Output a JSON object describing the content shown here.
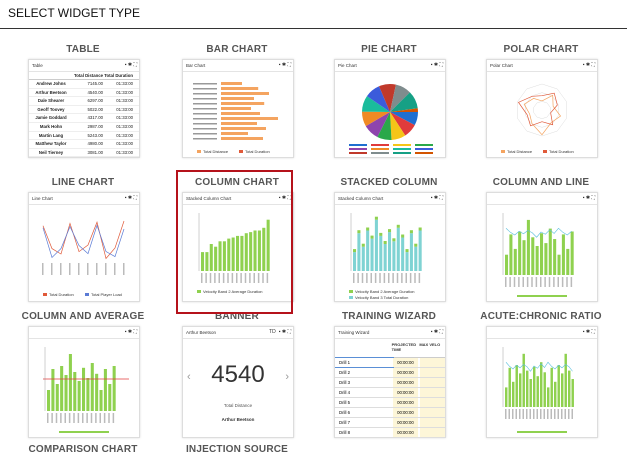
{
  "header": {
    "title": "SELECT WIDGET TYPE"
  },
  "widgets": [
    {
      "label": "TABLE",
      "thumbnail": {
        "title": "Table",
        "columns": [
          "Total Distance",
          "Total Duration"
        ],
        "rows": [
          [
            "Andrew Johns",
            "7145.00",
            "01:33:00"
          ],
          [
            "Arthur Beetson",
            "4540.00",
            "01:33:00"
          ],
          [
            "Dale Shearer",
            "6297.00",
            "01:33:00"
          ],
          [
            "Geoff Toovey",
            "5022.00",
            "01:33:00"
          ],
          [
            "Jamie Goddard",
            "4317.00",
            "01:33:00"
          ],
          [
            "Mark Hohn",
            "2987.00",
            "01:33:00"
          ],
          [
            "Martin Lang",
            "5243.00",
            "01:33:00"
          ],
          [
            "Matthew Taylor",
            "4980.00",
            "01:33:00"
          ],
          [
            "Neil Tierney",
            "3081.00",
            "01:33:00"
          ],
          [
            "Steve Renouf",
            "6249.00",
            "01:33:00"
          ]
        ]
      }
    },
    {
      "label": "BAR CHART",
      "thumbnail": {
        "title": "Bar Chart",
        "legend": [
          "Total Distance",
          "Total Duration"
        ]
      }
    },
    {
      "label": "PIE CHART",
      "thumbnail": {
        "title": "Pie Chart"
      }
    },
    {
      "label": "POLAR CHART",
      "thumbnail": {
        "title": "Polar Chart",
        "legend": [
          "Total Distance",
          "Total Duration"
        ]
      }
    },
    {
      "label": "LINE CHART",
      "thumbnail": {
        "title": "Line Chart",
        "legend": [
          "Total Duration",
          "Total Player Load"
        ]
      }
    },
    {
      "label": "COLUMN CHART",
      "thumbnail": {
        "title": "Stacked Column Chart",
        "legend": [
          "Velocity Band 2 Average Duration"
        ]
      }
    },
    {
      "label": "STACKED COLUMN",
      "thumbnail": {
        "title": "Stacked Column Chart",
        "legend": [
          "Velocity Band 2 Average Duration",
          "Velocity Band 3 Total Duration"
        ]
      }
    },
    {
      "label": "COLUMN AND LINE"
    },
    {
      "label": "COLUMN AND AVERAGE"
    },
    {
      "label": "BANNER",
      "thumbnail": {
        "title": "Arthur Beetson",
        "badge": "TD",
        "value": "4540",
        "caption": "Total Distance",
        "name": "Arthur Beetson"
      }
    },
    {
      "label": "TRAINING WIZARD",
      "thumbnail": {
        "title": "Training Wizard",
        "columns": [
          "PROJECTED TIME",
          "MAX VELO"
        ],
        "rows": [
          "Drill 1",
          "Drill 2",
          "Drill 3",
          "Drill 4",
          "Drill 5",
          "Drill 6",
          "Drill 7",
          "Drill 8"
        ],
        "time": "00:00:00"
      }
    },
    {
      "label": "ACUTE:CHRONIC RATIO"
    },
    {
      "label": "COMPARISON CHART"
    },
    {
      "label": "INJECTION SOURCE"
    }
  ]
}
